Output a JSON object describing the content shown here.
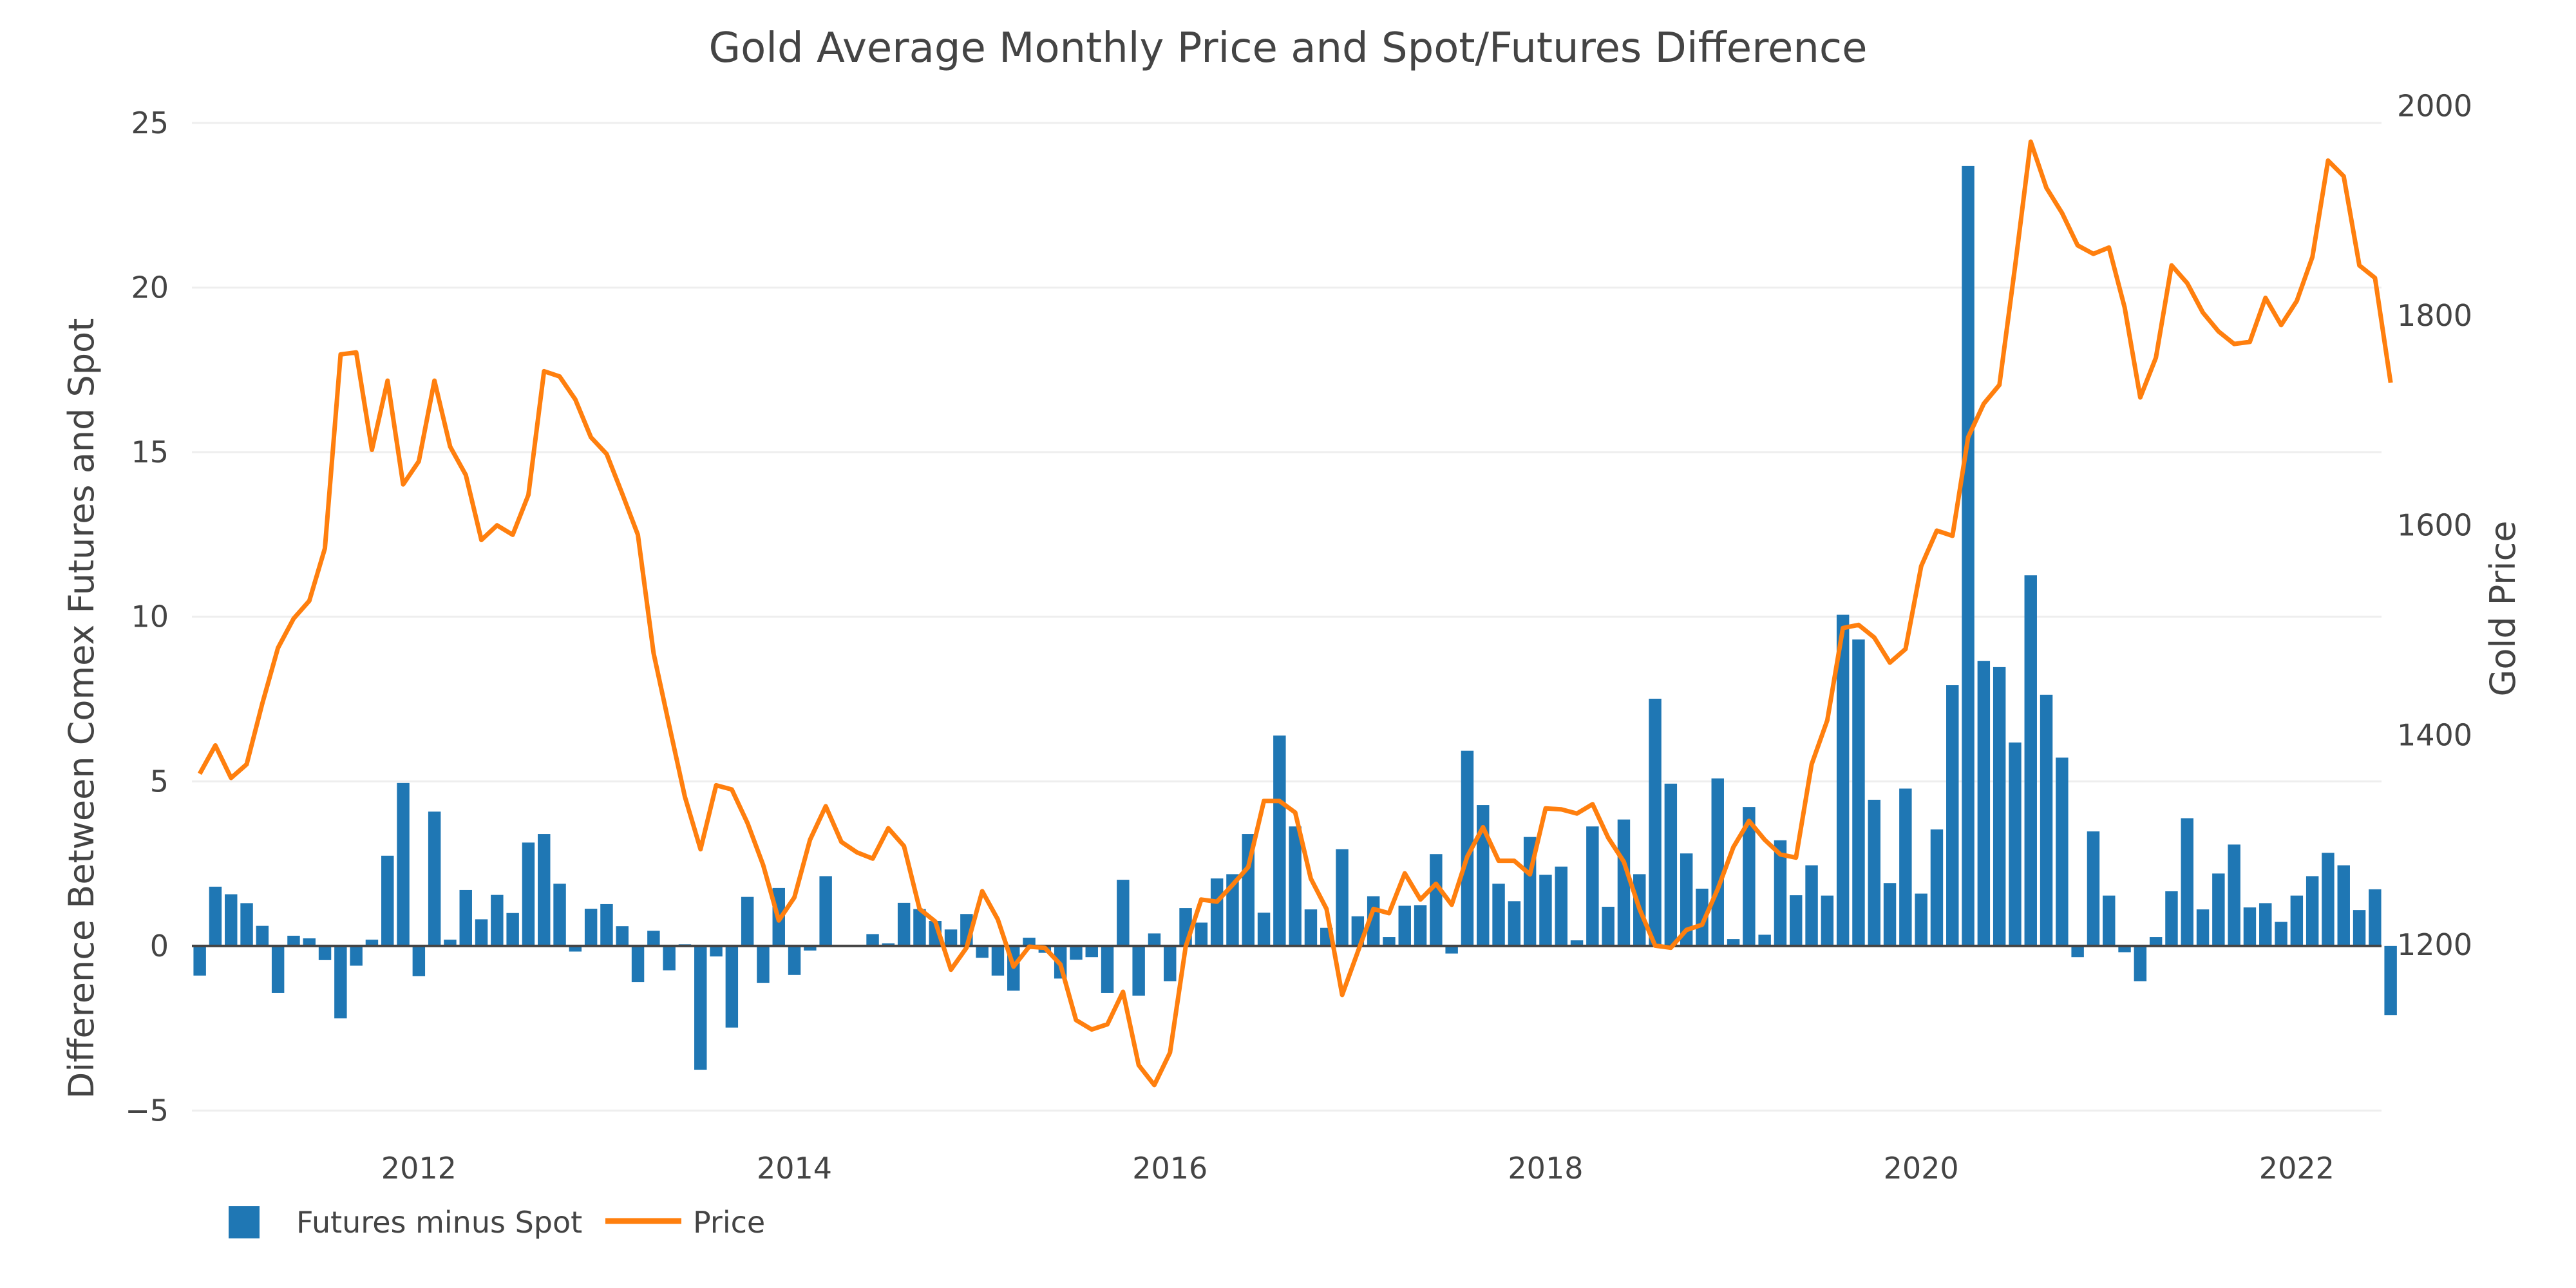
{
  "chart_data": {
    "type": "bar",
    "title": "Gold Average Monthly Price and Spot/Futures Difference",
    "xlabel": "",
    "ylabel": "Difference Between Comex Futures and Spot",
    "y2label": "Gold Price",
    "start_month": "2010-11",
    "end_month": "2022-07",
    "x_ticks": [
      "2012",
      "2014",
      "2016",
      "2018",
      "2020",
      "2022"
    ],
    "y_ticks": [
      "25",
      "20",
      "15",
      "10",
      "5",
      "0",
      "−5"
    ],
    "y_tick_values": [
      25,
      20,
      15,
      10,
      5,
      0,
      -5
    ],
    "y2_ticks": [
      "2000",
      "1800",
      "1600",
      "1400",
      "1200"
    ],
    "y2_tick_values": [
      2000,
      1800,
      1600,
      1400,
      1200
    ],
    "ylim": [
      -5.5,
      25.8
    ],
    "y2lim": [
      1026,
      2009
    ],
    "grid": true,
    "legend_position": "bottom-left",
    "series": [
      {
        "name": "Futures minus Spot",
        "type": "bar",
        "axis": "left",
        "color": "#1f77b4",
        "values": [
          -0.9,
          1.8,
          1.57,
          1.3,
          0.61,
          -1.43,
          0.31,
          0.23,
          -0.43,
          -2.2,
          -0.6,
          0.19,
          2.74,
          4.95,
          -0.92,
          4.08,
          0.19,
          1.7,
          0.81,
          1.55,
          1.0,
          3.14,
          3.4,
          1.89,
          -0.17,
          1.13,
          1.27,
          0.6,
          -1.1,
          0.46,
          -0.74,
          0.05,
          -3.76,
          -0.32,
          -2.48,
          1.49,
          -1.12,
          1.76,
          -0.88,
          -0.14,
          2.12,
          -0.03,
          -0.02,
          0.36,
          0.08,
          1.31,
          1.12,
          0.76,
          0.5,
          0.97,
          -0.36,
          -0.9,
          -1.36,
          0.25,
          -0.21,
          -0.99,
          -0.42,
          -0.34,
          -1.43,
          2.01,
          -1.51,
          0.38,
          -1.07,
          1.15,
          0.71,
          2.05,
          2.18,
          3.4,
          1.01,
          6.39,
          3.63,
          1.11,
          0.55,
          2.94,
          0.9,
          1.51,
          0.27,
          1.22,
          1.24,
          2.79,
          -0.23,
          5.93,
          4.28,
          1.89,
          1.36,
          3.31,
          2.16,
          2.41,
          0.17,
          3.63,
          1.19,
          3.84,
          2.18,
          7.51,
          4.93,
          2.81,
          1.74,
          5.09,
          0.21,
          4.22,
          0.34,
          3.21,
          1.54,
          2.45,
          1.53,
          10.06,
          9.31,
          4.44,
          1.91,
          4.78,
          1.59,
          3.54,
          7.92,
          23.69,
          8.66,
          8.47,
          6.18,
          11.26,
          7.63,
          5.72,
          -0.34,
          3.48,
          1.53,
          -0.19,
          -1.07,
          0.27,
          1.66,
          3.88,
          1.11,
          2.2,
          3.08,
          1.17,
          1.3,
          0.73,
          1.53,
          2.12,
          2.83,
          2.45,
          1.09,
          1.72,
          -2.1
        ]
      },
      {
        "name": "Price",
        "type": "line",
        "axis": "right",
        "color": "#ff7f0e",
        "values": [
          1363,
          1390,
          1359,
          1372,
          1430,
          1483,
          1511,
          1528,
          1578,
          1763,
          1765,
          1672,
          1738,
          1639,
          1661,
          1738,
          1675,
          1648,
          1586,
          1600,
          1591,
          1629,
          1747,
          1742,
          1720,
          1684,
          1668,
          1630,
          1591,
          1478,
          1409,
          1341,
          1291,
          1352,
          1348,
          1316,
          1276,
          1223,
          1245,
          1300,
          1332,
          1298,
          1288,
          1282,
          1311,
          1294,
          1234,
          1222,
          1176,
          1197,
          1251,
          1224,
          1179,
          1198,
          1197,
          1181,
          1128,
          1119,
          1124,
          1155,
          1085,
          1066,
          1097,
          1198,
          1243,
          1241,
          1257,
          1274,
          1337,
          1337,
          1326,
          1263,
          1234,
          1152,
          1193,
          1234,
          1230,
          1268,
          1243,
          1258,
          1238,
          1284,
          1312,
          1280,
          1280,
          1267,
          1330,
          1329,
          1325,
          1334,
          1302,
          1279,
          1234,
          1199,
          1197,
          1214,
          1219,
          1253,
          1293,
          1318,
          1300,
          1286,
          1283,
          1372,
          1414,
          1502,
          1505,
          1493,
          1469,
          1482,
          1561,
          1595,
          1590,
          1684,
          1716,
          1734,
          1847,
          1966,
          1922,
          1898,
          1867,
          1859,
          1865,
          1808,
          1722,
          1760,
          1848,
          1831,
          1803,
          1785,
          1773,
          1775,
          1817,
          1791,
          1814,
          1856,
          1948,
          1933,
          1848,
          1836,
          1736
        ]
      }
    ]
  }
}
